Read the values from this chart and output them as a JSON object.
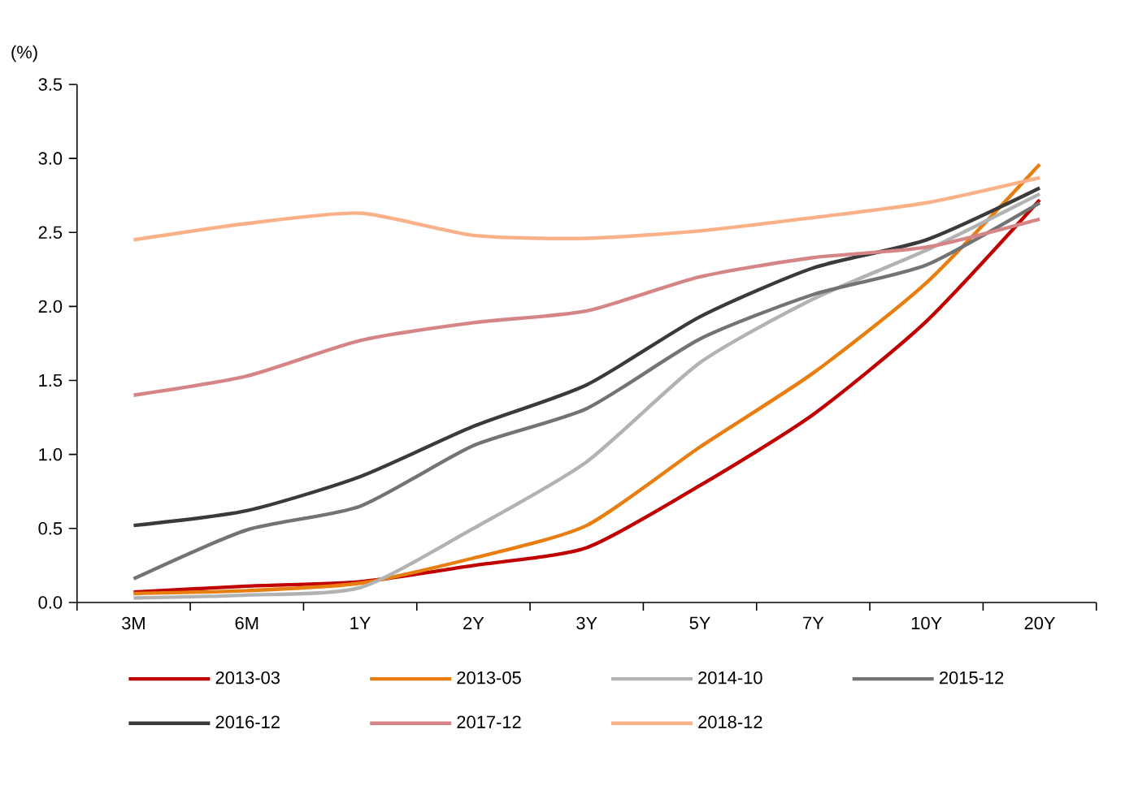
{
  "chart_data": {
    "type": "line",
    "ylabel": "(%)",
    "categories": [
      "3M",
      "6M",
      "1Y",
      "2Y",
      "3Y",
      "5Y",
      "7Y",
      "10Y",
      "20Y"
    ],
    "ylim": [
      0,
      3.5
    ],
    "yticks": [
      {
        "value": 0,
        "label": "0.0"
      },
      {
        "value": 0.5,
        "label": "0.5"
      },
      {
        "value": 1,
        "label": "1.0"
      },
      {
        "value": 1.5,
        "label": "1.5"
      },
      {
        "value": 2,
        "label": "2.0"
      },
      {
        "value": 2.5,
        "label": "2.5"
      },
      {
        "value": 3,
        "label": "3.0"
      },
      {
        "value": 3.5,
        "label": "3.5"
      }
    ],
    "grid": false,
    "legend": "bottom",
    "marker": "none",
    "line_style": "solid",
    "series": [
      {
        "name": "2013-03",
        "color": "#c00000",
        "values": [
          0.07,
          0.11,
          0.14,
          0.25,
          0.37,
          0.79,
          1.27,
          1.9,
          2.72
        ]
      },
      {
        "name": "2013-05",
        "color": "#e87d10",
        "values": [
          0.06,
          0.08,
          0.13,
          0.3,
          0.52,
          1.05,
          1.55,
          2.16,
          2.96
        ]
      },
      {
        "name": "2014-10",
        "color": "#b2b2b2",
        "values": [
          0.03,
          0.05,
          0.1,
          0.5,
          0.95,
          1.62,
          2.05,
          2.38,
          2.76
        ]
      },
      {
        "name": "2015-12",
        "color": "#737373",
        "values": [
          0.16,
          0.49,
          0.65,
          1.06,
          1.31,
          1.78,
          2.08,
          2.28,
          2.7
        ]
      },
      {
        "name": "2016-12",
        "color": "#3a3a3a",
        "values": [
          0.52,
          0.62,
          0.85,
          1.19,
          1.47,
          1.93,
          2.26,
          2.45,
          2.8
        ]
      },
      {
        "name": "2017-12",
        "color": "#d58585",
        "values": [
          1.4,
          1.53,
          1.77,
          1.89,
          1.97,
          2.2,
          2.33,
          2.4,
          2.59
        ]
      },
      {
        "name": "2018-12",
        "color": "#fbb188",
        "values": [
          2.45,
          2.56,
          2.63,
          2.48,
          2.46,
          2.51,
          2.6,
          2.7,
          2.87
        ]
      }
    ]
  }
}
